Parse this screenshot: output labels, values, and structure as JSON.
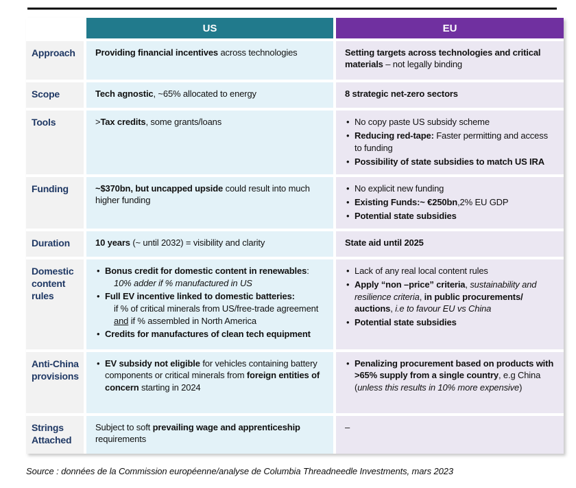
{
  "colors": {
    "us_header": "#217a8c",
    "eu_header": "#7030a0",
    "us_cell_bg": "#e3f2f8",
    "eu_cell_bg": "#ebe7f2",
    "label_bg": "#f2f2f2",
    "label_text": "#1f3864"
  },
  "table": {
    "headers": {
      "us": "US",
      "eu": "EU"
    },
    "rows": [
      {
        "label": "Approach",
        "us": [
          {
            "segments": [
              {
                "t": "Providing financial incentives",
                "b": true
              },
              {
                "t": " across technologies"
              }
            ]
          }
        ],
        "eu": [
          {
            "segments": [
              {
                "t": "Setting targets across technologies and critical materials",
                "b": true
              },
              {
                "t": " – not legally binding"
              }
            ]
          }
        ]
      },
      {
        "label": "Scope",
        "us": [
          {
            "segments": [
              {
                "t": "Tech agnostic",
                "b": true
              },
              {
                "t": ", ~65% allocated to energy"
              }
            ]
          }
        ],
        "eu": [
          {
            "segments": [
              {
                "t": "8 strategic net-zero sectors",
                "b": true
              }
            ]
          }
        ]
      },
      {
        "label": "Tools",
        "us": [
          {
            "segments": [
              {
                "t": ">"
              },
              {
                "t": "Tax credits",
                "b": true
              },
              {
                "t": ", some grants/loans"
              }
            ]
          }
        ],
        "eu": [
          {
            "bullet": true,
            "segments": [
              {
                "t": "No copy paste US subsidy scheme"
              }
            ]
          },
          {
            "bullet": true,
            "segments": [
              {
                "t": "Reducing red-tape:",
                "b": true
              },
              {
                "t": " Faster permitting and access to funding"
              }
            ]
          },
          {
            "bullet": true,
            "segments": [
              {
                "t": "Possibility of state subsidies to match US IRA",
                "b": true
              }
            ]
          }
        ]
      },
      {
        "label": "Funding",
        "us": [
          {
            "segments": [
              {
                "t": "~$370bn, but uncapped upside",
                "b": true
              },
              {
                "t": " could result into much higher funding"
              }
            ]
          }
        ],
        "eu": [
          {
            "bullet": true,
            "segments": [
              {
                "t": "No explicit new funding"
              }
            ]
          },
          {
            "bullet": true,
            "segments": [
              {
                "t": "Existing Funds:~ €250bn",
                "b": true
              },
              {
                "t": ",2% EU GDP"
              }
            ]
          },
          {
            "bullet": true,
            "segments": [
              {
                "t": "Potential state subsidies",
                "b": true
              }
            ]
          }
        ]
      },
      {
        "label": "Duration",
        "us": [
          {
            "segments": [
              {
                "t": "10 years",
                "b": true
              },
              {
                "t": " (~ until 2032) = visibility and clarity"
              }
            ]
          }
        ],
        "eu": [
          {
            "segments": [
              {
                "t": "State aid until 2025",
                "b": true
              }
            ]
          }
        ]
      },
      {
        "label": "Domestic content rules",
        "us": [
          {
            "bullet": true,
            "segments": [
              {
                "t": "Bonus credit for domestic content in renewables",
                "b": true
              },
              {
                "t": ":"
              }
            ]
          },
          {
            "indent": true,
            "segments": [
              {
                "t": "10% adder if % manufactured in US",
                "i": true
              }
            ]
          },
          {
            "bullet": true,
            "segments": [
              {
                "t": "Full EV incentive linked to domestic batteries:",
                "b": true
              }
            ]
          },
          {
            "indent": true,
            "segments": [
              {
                "t": "if % of critical minerals from US/free-trade agreement"
              }
            ]
          },
          {
            "indent": true,
            "segments": [
              {
                "t": "and",
                "u": true
              },
              {
                "t": " if % assembled in North America"
              }
            ]
          },
          {
            "bullet": true,
            "segments": [
              {
                "t": "Credits for manufactures of clean tech equipment",
                "b": true
              }
            ]
          }
        ],
        "eu": [
          {
            "bullet": true,
            "segments": [
              {
                "t": "Lack of any real local content rules"
              }
            ]
          },
          {
            "bullet": true,
            "segments": [
              {
                "t": "Apply “non –price” criteria",
                "b": true
              },
              {
                "t": ", "
              },
              {
                "t": "sustainability and resilience criteria",
                "i": true
              },
              {
                "t": ", "
              },
              {
                "t": "in public procurements/ auctions",
                "b": true
              },
              {
                "t": ", "
              },
              {
                "t": "i.e to favour EU vs China",
                "i": true
              }
            ]
          },
          {
            "bullet": true,
            "segments": [
              {
                "t": "Potential state subsidies",
                "b": true
              }
            ]
          }
        ]
      },
      {
        "label": "Anti-China provisions",
        "us": [
          {
            "bullet": true,
            "segments": [
              {
                "t": "EV subsidy not eligible",
                "b": true
              },
              {
                "t": " for vehicles containing battery components or critical minerals from "
              },
              {
                "t": "foreign entities of concern",
                "b": true
              },
              {
                "t": " starting in 2024"
              }
            ]
          }
        ],
        "eu": [
          {
            "bullet": true,
            "segments": [
              {
                "t": "Penalizing procurement based on products with >65% supply from a single country",
                "b": true
              },
              {
                "t": ", e.g China ("
              },
              {
                "t": "unless this results in 10% more expensive",
                "i": true
              },
              {
                "t": ")"
              }
            ]
          }
        ]
      },
      {
        "label": "Strings Attached",
        "us": [
          {
            "segments": [
              {
                "t": "Subject to soft "
              },
              {
                "t": "prevailing wage and apprenticeship",
                "b": true
              },
              {
                "t": " requirements"
              }
            ]
          }
        ],
        "eu": [
          {
            "segments": [
              {
                "t": "–"
              }
            ]
          }
        ]
      }
    ]
  },
  "source": "Source : données de la Commission européenne/analyse de Columbia Threadneedle Investments, mars 2023"
}
